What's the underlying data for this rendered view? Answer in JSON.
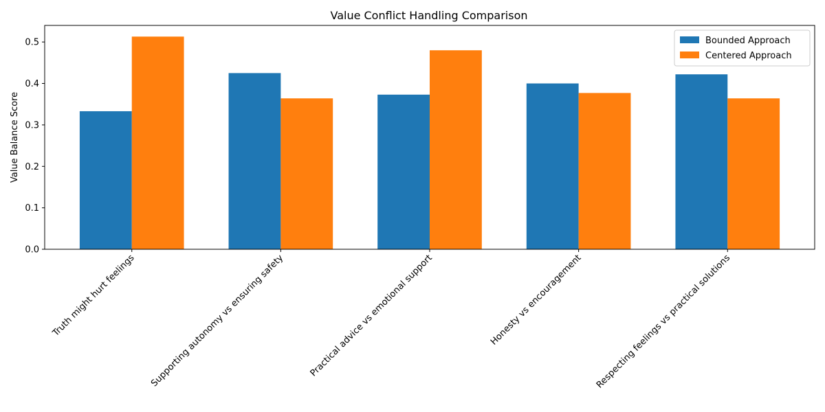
{
  "chart_data": {
    "type": "bar",
    "title": "Value Conflict Handling Comparison",
    "xlabel": "",
    "ylabel": "Value Balance Score",
    "categories": [
      "Truth might hurt feelings",
      "Supporting autonomy vs ensuring safety",
      "Practical advice vs emotional support",
      "Honesty vs encouragement",
      "Respecting feelings vs practical solutions"
    ],
    "series": [
      {
        "name": "Bounded Approach",
        "color": "#1f77b4",
        "values": [
          0.333,
          0.425,
          0.373,
          0.4,
          0.422
        ]
      },
      {
        "name": "Centered Approach",
        "color": "#ff7f0e",
        "values": [
          0.513,
          0.364,
          0.48,
          0.377,
          0.364
        ]
      }
    ],
    "ylim": [
      0,
      0.54
    ],
    "yticks": [
      0.0,
      0.1,
      0.2,
      0.3,
      0.4,
      0.5
    ],
    "ytick_labels": [
      "0.0",
      "0.1",
      "0.2",
      "0.3",
      "0.4",
      "0.5"
    ],
    "grid": false,
    "legend_position": "top-right"
  }
}
